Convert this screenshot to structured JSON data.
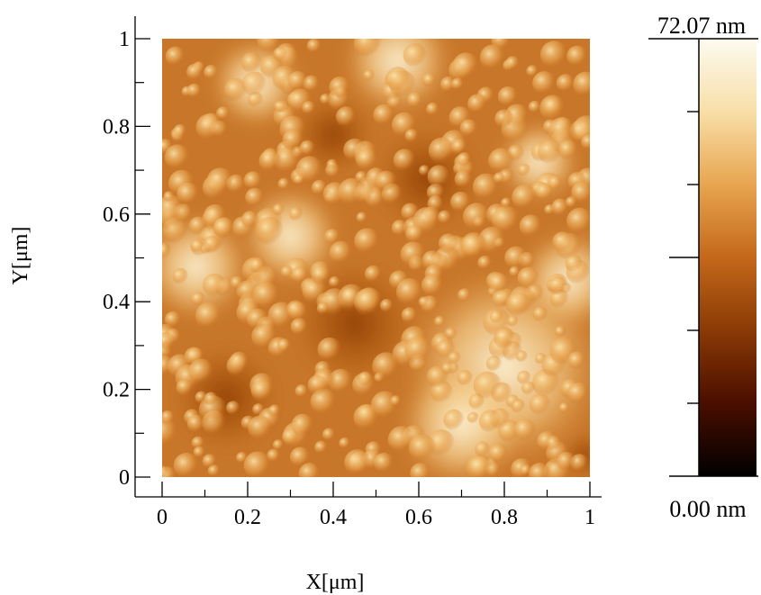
{
  "chart_data": {
    "type": "heatmap",
    "title": "",
    "xlabel": "X[μm]",
    "ylabel": "Y[μm]",
    "xlim": [
      0,
      1
    ],
    "ylim": [
      0,
      1
    ],
    "x_ticks": [
      "0",
      "0.2",
      "0.4",
      "0.6",
      "0.8",
      "1"
    ],
    "y_ticks": [
      "0",
      "0.2",
      "0.4",
      "0.6",
      "0.8",
      "1"
    ],
    "colorbar": {
      "max_label": "72.07 nm",
      "min_label": "0.00 nm",
      "range": [
        0.0,
        72.07
      ],
      "unit": "nm",
      "colormap": [
        "#000000",
        "#4a0e00",
        "#8a3a05",
        "#c4681a",
        "#e8a550",
        "#f8dfa8",
        "#fcfaf0"
      ]
    }
  }
}
